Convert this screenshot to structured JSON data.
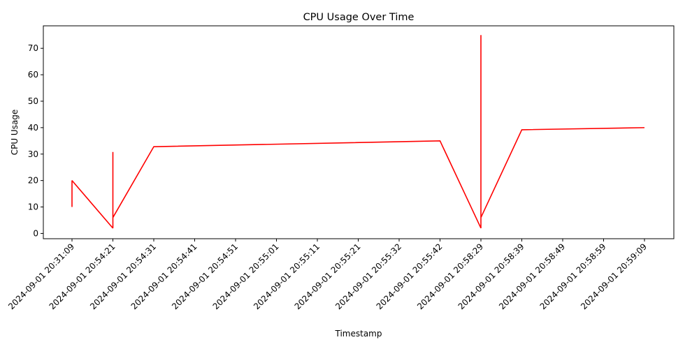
{
  "chart_data": {
    "type": "line",
    "title": "CPU Usage Over Time",
    "xlabel": "Timestamp",
    "ylabel": "CPU Usage",
    "categories": [
      "2024-09-01 20:31:09",
      "2024-09-01 20:54:21",
      "2024-09-01 20:54:31",
      "2024-09-01 20:54:41",
      "2024-09-01 20:54:51",
      "2024-09-01 20:55:01",
      "2024-09-01 20:55:11",
      "2024-09-01 20:55:21",
      "2024-09-01 20:55:32",
      "2024-09-01 20:55:42",
      "2024-09-01 20:58:29",
      "2024-09-01 20:58:39",
      "2024-09-01 20:58:49",
      "2024-09-01 20:58:59",
      "2024-09-01 20:59:09"
    ],
    "series": [
      {
        "color": "#ff0000",
        "points": [
          {
            "x": "2024-09-01 20:31:09",
            "y": 10
          },
          {
            "x": "2024-09-01 20:31:09",
            "y": 20
          },
          {
            "x": "2024-09-01 20:54:21",
            "y": 2
          },
          {
            "x": "2024-09-01 20:54:21",
            "y": 30.8
          },
          {
            "x": "2024-09-01 20:54:21",
            "y": 6
          },
          {
            "x": "2024-09-01 20:54:31",
            "y": 32.8
          },
          {
            "x": "2024-09-01 20:55:42",
            "y": 35
          },
          {
            "x": "2024-09-01 20:58:29",
            "y": 2
          },
          {
            "x": "2024-09-01 20:58:29",
            "y": 75
          },
          {
            "x": "2024-09-01 20:58:29",
            "y": 6
          },
          {
            "x": "2024-09-01 20:58:39",
            "y": 39.2
          },
          {
            "x": "2024-09-01 20:59:09",
            "y": 40
          }
        ]
      }
    ],
    "yticks": [
      0,
      10,
      20,
      30,
      40,
      50,
      60,
      70
    ],
    "ylim": [
      -2,
      78.5
    ],
    "grid": false,
    "legend": "none"
  }
}
